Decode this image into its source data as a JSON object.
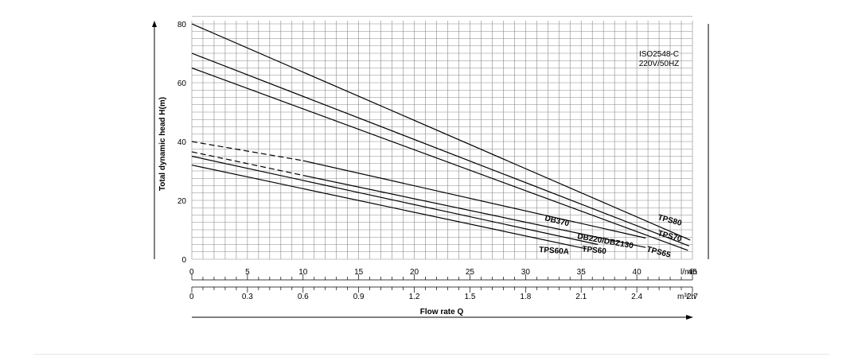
{
  "chart_data": {
    "type": "line",
    "ylabel": "Total dynamic head H(m)",
    "xlabel": "Flow rate Q",
    "ylim": [
      0,
      80
    ],
    "xlim": [
      0,
      45
    ],
    "y_ticks": [
      "0",
      "20",
      "40",
      "60",
      "80"
    ],
    "x_ticks_lmin": [
      "0",
      "5",
      "10",
      "15",
      "20",
      "25",
      "30",
      "35",
      "40",
      "45"
    ],
    "x_unit_lmin": "l/min",
    "x_ticks_m3h": [
      "0",
      "0.3",
      "0.6",
      "0.9",
      "1.2",
      "1.5",
      "1.8",
      "2.1",
      "2.4",
      "2.7"
    ],
    "x_unit_m3h": "m³/ h",
    "note_lines": [
      "ISO2548-C",
      "220V/50HZ"
    ],
    "grid": true,
    "series": [
      {
        "name": "TPS80",
        "points": [
          [
            0,
            80
          ],
          [
            44.8,
            6.5
          ]
        ]
      },
      {
        "name": "TPS70",
        "points": [
          [
            0,
            70
          ],
          [
            44.7,
            4.5
          ]
        ]
      },
      {
        "name": "TPS65",
        "points": [
          [
            0,
            65
          ],
          [
            44.6,
            3
          ]
        ]
      },
      {
        "name": "DB370",
        "points": [
          [
            0,
            40
          ],
          [
            10,
            33.5
          ],
          [
            40.8,
            7.2
          ]
        ],
        "dashed_until": 10
      },
      {
        "name": "DB220/DBZ130",
        "points": [
          [
            0,
            36.5
          ],
          [
            10,
            28.5
          ],
          [
            40.8,
            4
          ]
        ],
        "dashed_until": 10
      },
      {
        "name": "TPS60",
        "points": [
          [
            0,
            35
          ],
          [
            36.5,
            5
          ]
        ]
      },
      {
        "name": "TPS60A",
        "points": [
          [
            0,
            32
          ],
          [
            35.5,
            3.5
          ]
        ]
      }
    ]
  }
}
